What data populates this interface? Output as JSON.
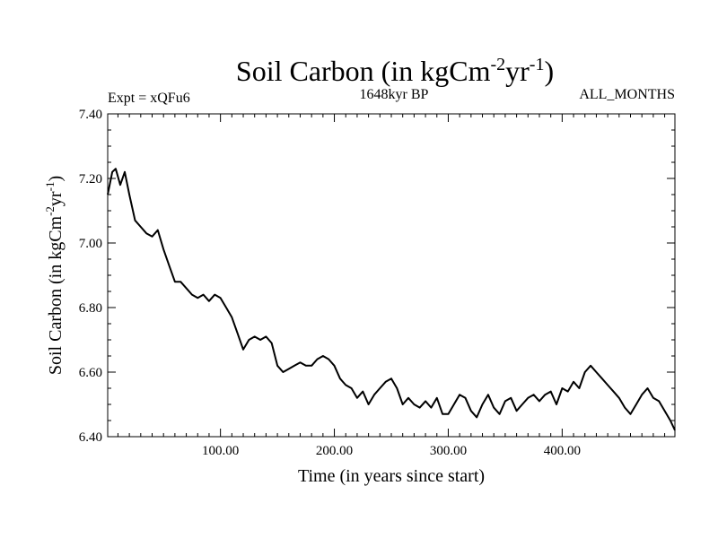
{
  "chart_data": {
    "type": "line",
    "title": {
      "main": "Soil Carbon (in kgCm",
      "sup1": "-2",
      "mid": "yr",
      "sup2": "-1",
      "end": ")"
    },
    "subtitle_left": "Expt = xQFu6",
    "subtitle_center": "1648kyr BP",
    "subtitle_right": "ALL_MONTHS",
    "xlabel": "Time (in years since start)",
    "ylabel": {
      "main": "Soil Carbon (in kgCm",
      "sup1": "-2",
      "mid": "yr",
      "sup2": "-1",
      "end": ")"
    },
    "xlim": [
      1,
      499
    ],
    "ylim": [
      6.4,
      7.4
    ],
    "xticks": [
      {
        "value": 100,
        "label": "100.00"
      },
      {
        "value": 200,
        "label": "200.00"
      },
      {
        "value": 300,
        "label": "300.00"
      },
      {
        "value": 400,
        "label": "400.00"
      }
    ],
    "yticks": [
      {
        "value": 6.4,
        "label": "6.40"
      },
      {
        "value": 6.6,
        "label": "6.60"
      },
      {
        "value": 6.8,
        "label": "6.80"
      },
      {
        "value": 7.0,
        "label": "7.00"
      },
      {
        "value": 7.2,
        "label": "7.20"
      },
      {
        "value": 7.4,
        "label": "7.40"
      }
    ],
    "line_color": "#000000",
    "series": [
      {
        "name": "Soil Carbon",
        "x": [
          1,
          5,
          8,
          12,
          16,
          20,
          25,
          30,
          35,
          40,
          45,
          50,
          55,
          60,
          65,
          70,
          75,
          80,
          85,
          90,
          95,
          100,
          105,
          110,
          115,
          120,
          125,
          130,
          135,
          140,
          145,
          150,
          155,
          160,
          165,
          170,
          175,
          180,
          185,
          190,
          195,
          200,
          205,
          210,
          215,
          220,
          225,
          230,
          235,
          240,
          245,
          250,
          255,
          260,
          265,
          270,
          275,
          280,
          285,
          290,
          295,
          300,
          305,
          310,
          315,
          320,
          325,
          330,
          335,
          340,
          345,
          350,
          355,
          360,
          365,
          370,
          375,
          380,
          385,
          390,
          395,
          400,
          405,
          410,
          415,
          420,
          425,
          430,
          435,
          440,
          445,
          450,
          455,
          460,
          465,
          470,
          475,
          480,
          485,
          490,
          495,
          499
        ],
        "y": [
          7.15,
          7.22,
          7.23,
          7.18,
          7.22,
          7.15,
          7.07,
          7.05,
          7.03,
          7.02,
          7.04,
          6.98,
          6.93,
          6.88,
          6.88,
          6.86,
          6.84,
          6.83,
          6.84,
          6.82,
          6.84,
          6.83,
          6.8,
          6.77,
          6.72,
          6.67,
          6.7,
          6.71,
          6.7,
          6.71,
          6.69,
          6.62,
          6.6,
          6.61,
          6.62,
          6.63,
          6.62,
          6.62,
          6.64,
          6.65,
          6.64,
          6.62,
          6.58,
          6.56,
          6.55,
          6.52,
          6.54,
          6.5,
          6.53,
          6.55,
          6.57,
          6.58,
          6.55,
          6.5,
          6.52,
          6.5,
          6.49,
          6.51,
          6.49,
          6.52,
          6.47,
          6.47,
          6.5,
          6.53,
          6.52,
          6.48,
          6.46,
          6.5,
          6.53,
          6.49,
          6.47,
          6.51,
          6.52,
          6.48,
          6.5,
          6.52,
          6.53,
          6.51,
          6.53,
          6.54,
          6.5,
          6.55,
          6.54,
          6.57,
          6.55,
          6.6,
          6.62,
          6.6,
          6.58,
          6.56,
          6.54,
          6.52,
          6.49,
          6.47,
          6.5,
          6.53,
          6.55,
          6.52,
          6.51,
          6.48,
          6.45,
          6.42
        ]
      }
    ]
  }
}
